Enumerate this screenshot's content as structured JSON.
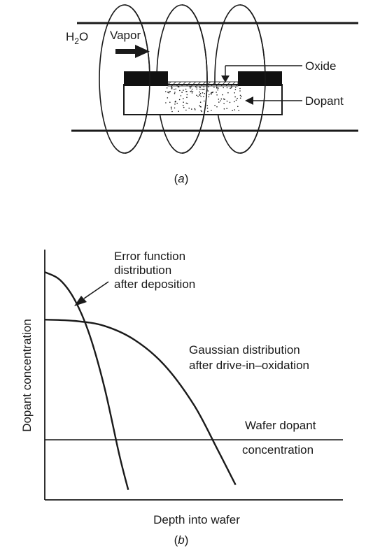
{
  "panel_a": {
    "vapor_label": "Vapor",
    "h2o_label_main": "H",
    "h2o_label_sub": "2",
    "h2o_label_end": "O",
    "oxide_label": "Oxide",
    "dopant_label": "Dopant",
    "caption_open": "(",
    "caption_letter": "a",
    "caption_close": ")"
  },
  "panel_b": {
    "caption_open": "(",
    "caption_letter": "b",
    "caption_close": ")"
  },
  "chart_data": {
    "type": "line",
    "title": "",
    "xlabel": "Depth into wafer",
    "ylabel": "Dopant concentration",
    "xlim": [
      0,
      10
    ],
    "ylim": [
      0,
      10
    ],
    "series": [
      {
        "name": "Error function distribution after deposition",
        "annotation_lines": [
          "Error function",
          "distribution",
          "after deposition"
        ],
        "x": [
          0.0,
          0.5,
          1.0,
          1.5,
          2.0,
          2.5,
          2.8
        ],
        "y": [
          9.1,
          8.8,
          8.0,
          6.6,
          4.5,
          1.8,
          0.4
        ]
      },
      {
        "name": "Gaussian distribution after drive-in–oxidation",
        "annotation_lines": [
          "Gaussian distribution",
          "after drive-in–oxidation"
        ],
        "x": [
          0.0,
          1.0,
          2.0,
          3.0,
          4.0,
          5.0,
          5.8,
          6.4
        ],
        "y": [
          7.2,
          7.15,
          6.95,
          6.4,
          5.4,
          3.8,
          2.0,
          0.6
        ]
      },
      {
        "name": "Wafer dopant concentration",
        "annotation_lines": [
          "Wafer dopant",
          "concentration"
        ],
        "x": [
          0,
          10
        ],
        "y": [
          2.4,
          2.4
        ]
      }
    ]
  },
  "colors": {
    "ink": "#1a1a1a",
    "background": "#ffffff"
  }
}
